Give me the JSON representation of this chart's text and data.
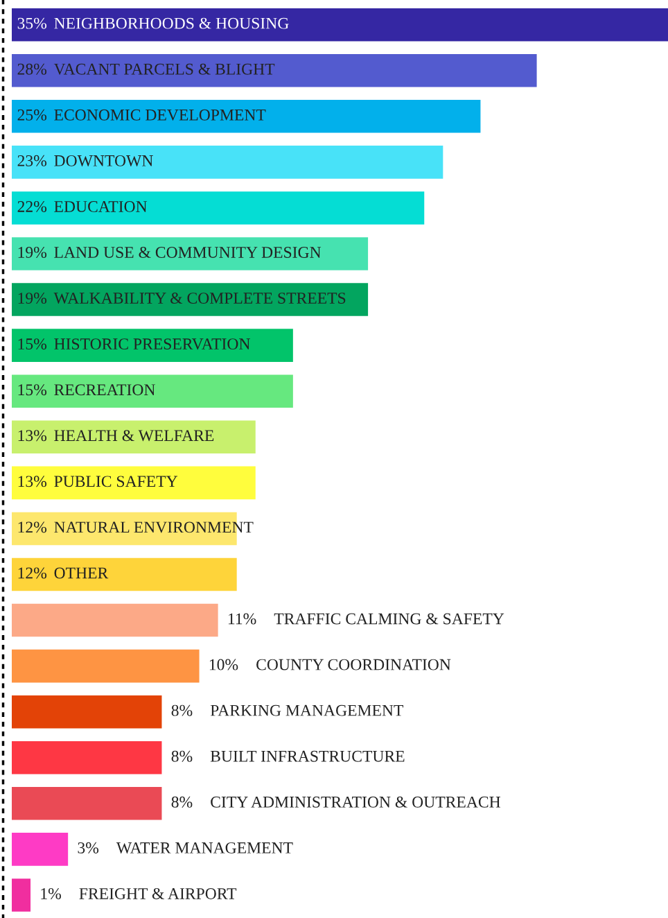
{
  "chart_data": {
    "type": "bar",
    "orientation": "horizontal",
    "categories": [
      "NEIGHBORHOODS & HOUSING",
      "VACANT PARCELS & BLIGHT",
      "ECONOMIC DEVELOPMENT",
      "DOWNTOWN",
      "EDUCATION",
      "LAND USE & COMMUNITY DESIGN",
      "WALKABILITY & COMPLETE STREETS",
      "HISTORIC PRESERVATION",
      "RECREATION",
      "HEALTH & WELFARE",
      "PUBLIC SAFETY",
      "NATURAL ENVIRONMENT",
      "OTHER",
      "TRAFFIC CALMING & SAFETY",
      "COUNTY COORDINATION",
      "PARKING MANAGEMENT",
      "BUILT INFRASTRUCTURE",
      "CITY ADMINISTRATION & OUTREACH",
      "WATER MANAGEMENT",
      "FREIGHT & AIRPORT"
    ],
    "values": [
      35,
      28,
      25,
      23,
      22,
      19,
      19,
      15,
      15,
      13,
      13,
      12,
      12,
      11,
      10,
      8,
      8,
      8,
      3,
      1
    ],
    "value_labels": [
      "35%",
      "28%",
      "25%",
      "23%",
      "22%",
      "19%",
      "19%",
      "15%",
      "15%",
      "13%",
      "13%",
      "12%",
      "12%",
      "11%",
      "10%",
      "8%",
      "8%",
      "8%",
      "3%",
      "1%"
    ],
    "colors": [
      "#3527a3",
      "#535bcf",
      "#02b0eb",
      "#48e2f8",
      "#05ddd4",
      "#46e2b0",
      "#03a55f",
      "#02c46a",
      "#66e87f",
      "#c8f06d",
      "#fffd3d",
      "#fde76d",
      "#fed43a",
      "#fca987",
      "#fe9443",
      "#e34307",
      "#fe3744",
      "#ea4a55",
      "#fe3bc5",
      "#f02e9f"
    ],
    "legend": false
  }
}
